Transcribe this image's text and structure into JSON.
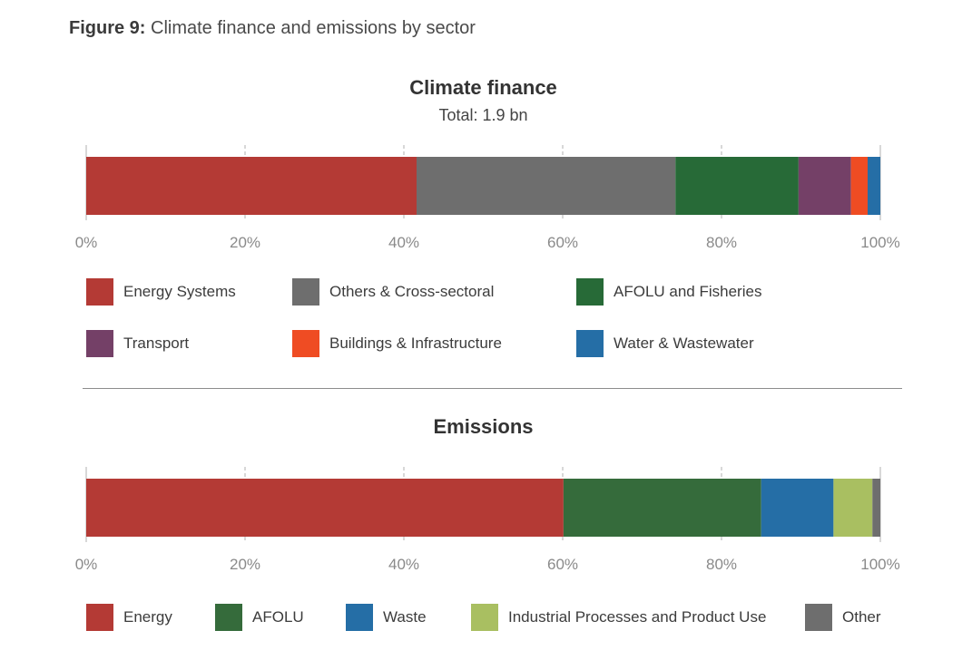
{
  "figure": {
    "label": "Figure 9:",
    "caption": "Climate finance and emissions by sector"
  },
  "chart_data": [
    {
      "type": "bar",
      "orientation": "horizontal-stacked-100",
      "title": "Climate finance",
      "subtitle": "Total: 1.9 bn",
      "xlim": [
        0,
        100
      ],
      "ticks": [
        "0%",
        "20%",
        "40%",
        "60%",
        "80%",
        "100%"
      ],
      "grid": true,
      "legend_position": "bottom",
      "series": [
        {
          "name": "Energy Systems",
          "value": 41.6,
          "color": "#b43a35"
        },
        {
          "name": "Others & Cross-sectoral",
          "value": 32.6,
          "color": "#6e6e6e"
        },
        {
          "name": "AFOLU and Fisheries",
          "value": 15.5,
          "color": "#276a37"
        },
        {
          "name": "Transport",
          "value": 6.6,
          "color": "#744067"
        },
        {
          "name": "Buildings & Infrastructure",
          "value": 2.1,
          "color": "#ef4c23"
        },
        {
          "name": "Water & Wastewater",
          "value": 1.6,
          "color": "#256ea6"
        }
      ]
    },
    {
      "type": "bar",
      "orientation": "horizontal-stacked-100",
      "title": "Emissions",
      "xlim": [
        0,
        100
      ],
      "ticks": [
        "0%",
        "20%",
        "40%",
        "60%",
        "80%",
        "100%"
      ],
      "grid": true,
      "legend_position": "bottom",
      "series": [
        {
          "name": "Energy",
          "value": 60.1,
          "color": "#b43a35"
        },
        {
          "name": "AFOLU",
          "value": 24.9,
          "color": "#356b3b"
        },
        {
          "name": "Waste",
          "value": 9.1,
          "color": "#256ea6"
        },
        {
          "name": "Industrial Processes and Product Use",
          "value": 4.9,
          "color": "#a9bf61"
        },
        {
          "name": "Other",
          "value": 1.0,
          "color": "#6e6e6e"
        }
      ]
    }
  ]
}
